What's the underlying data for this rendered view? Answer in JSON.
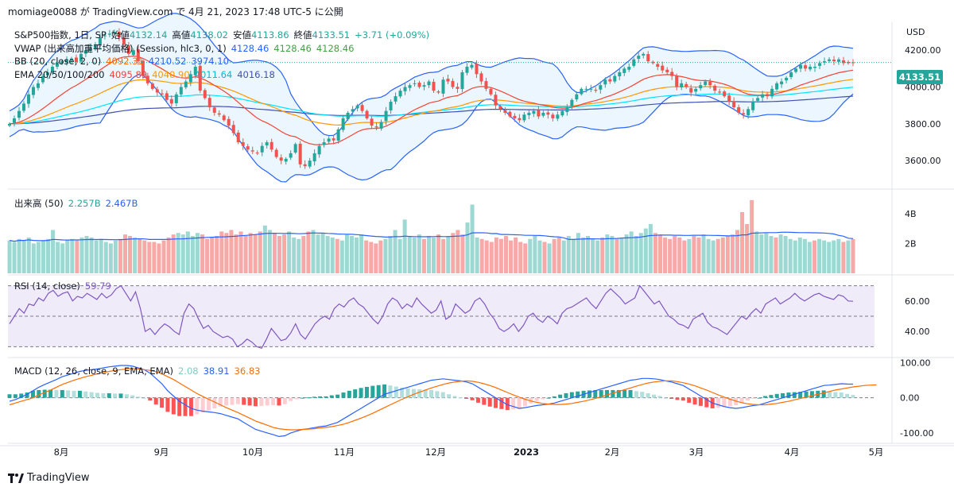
{
  "header": {
    "text": "momiage0088 が TradingView.com で 4月 21, 2023 17:48 UTC-5 に公開"
  },
  "legend": {
    "symbol": "S&P500指数, 1日, SP",
    "open_label": "始値",
    "open": "4132.14",
    "high_label": "高値",
    "high": "4138.02",
    "low_label": "安値",
    "low": "4113.86",
    "close_label": "終値",
    "close": "4133.51",
    "change": "+3.71 (+0.09%)",
    "vwap_label": "VWAP (出来高加重平均価格) (Session, hlc3, 0, 1)",
    "vwap_values": [
      "4128.46",
      "4128.46",
      "4128.46"
    ],
    "bb_label": "BB (20, close, 2, 0)",
    "bb_values": [
      "4092.31",
      "4210.52",
      "3974.10"
    ],
    "ema_label": "EMA 20/50/100/200",
    "ema_values": [
      "4095.89",
      "4040.90",
      "4011.64",
      "4016.18"
    ],
    "volume_label": "出来高 (50)",
    "volume_values": [
      "2.257B",
      "2.467B"
    ],
    "rsi_label": "RSI (14, close)",
    "rsi_value": "59.79",
    "macd_label": "MACD (12, 26, close, 9, EMA, EMA)",
    "macd_values": [
      "2.08",
      "38.91",
      "36.83"
    ]
  },
  "price_tag": "4133.51",
  "currency": "USD",
  "footer": {
    "brand": "TradingView"
  },
  "colors": {
    "up": "#26a69a",
    "down": "#ef5350",
    "bb": "#2962ff",
    "bb_fill": "#e3f2fd",
    "ema20": "#f44336",
    "ema50": "#ff9800",
    "ema100": "#00e5ff",
    "ema200": "#3f51b5",
    "vol_up": "#9ed8d2",
    "vol_down": "#f7a9a7",
    "rsi": "#7e57c2",
    "macd": "#2962ff",
    "signal": "#ff6d00"
  },
  "chart_data": [
    {
      "type": "candlestick",
      "title": "S&P500指数, 1日, SP",
      "x_ticks": [
        "8月",
        "9月",
        "10月",
        "11月",
        "12月",
        "2023",
        "2月",
        "3月",
        "4月",
        "5月"
      ],
      "y_ticks": [
        "4200.00",
        "4000.00",
        "3800.00",
        "3600.00"
      ],
      "ylim": [
        3480,
        4300
      ],
      "close_series": [
        3800,
        3830,
        3870,
        3910,
        3960,
        4000,
        4020,
        4060,
        4080,
        4110,
        4130,
        4140,
        4150,
        4155,
        4135,
        4180,
        4200,
        4210,
        4230,
        4270,
        4280,
        4290,
        4300,
        4270,
        4230,
        4180,
        4200,
        4140,
        4060,
        4020,
        3990,
        3970,
        3960,
        3930,
        3910,
        3960,
        4000,
        4030,
        4070,
        4110,
        3980,
        3940,
        3890,
        3860,
        3850,
        3820,
        3790,
        3750,
        3700,
        3680,
        3660,
        3650,
        3640,
        3680,
        3700,
        3660,
        3620,
        3600,
        3610,
        3640,
        3690,
        3580,
        3570,
        3600,
        3640,
        3680,
        3700,
        3720,
        3710,
        3770,
        3830,
        3860,
        3880,
        3900,
        3870,
        3830,
        3790,
        3780,
        3810,
        3870,
        3920,
        3950,
        3980,
        4000,
        4010,
        4020,
        4000,
        4010,
        4030,
        3980,
        3970,
        4040,
        4030,
        4000,
        3990,
        4080,
        4110,
        4120,
        4070,
        4030,
        3990,
        3960,
        3900,
        3880,
        3860,
        3840,
        3830,
        3820,
        3850,
        3860,
        3870,
        3840,
        3860,
        3850,
        3830,
        3850,
        3870,
        3890,
        3930,
        3960,
        3990,
        3990,
        3990,
        3980,
        4010,
        4040,
        4030,
        4060,
        4080,
        4100,
        4110,
        4150,
        4170,
        4180,
        4140,
        4130,
        4110,
        4090,
        4080,
        4060,
        4000,
        4020,
        4000,
        3970,
        3990,
        4010,
        4030,
        4010,
        3980,
        3970,
        3950,
        3920,
        3890,
        3860,
        3850,
        3880,
        3920,
        3940,
        3960,
        3950,
        3990,
        4020,
        4030,
        4050,
        4080,
        4100,
        4120,
        4100,
        4110,
        4110,
        4130,
        4140,
        4150,
        4140,
        4150,
        4130,
        4130,
        4133.51
      ],
      "annotation_last_price": "4133.51"
    },
    {
      "type": "bar",
      "title": "出来高 (50)",
      "y_ticks": [
        "4B",
        "2B"
      ],
      "ylim": [
        0,
        5
      ],
      "values_b": [
        2.2,
        2.1,
        2.3,
        2.2,
        2.4,
        2.0,
        2.1,
        2.2,
        2.3,
        2.9,
        2.1,
        2.0,
        2.2,
        2.3,
        2.2,
        2.4,
        2.5,
        2.4,
        2.2,
        2.3,
        2.1,
        2.0,
        2.2,
        2.3,
        2.6,
        2.5,
        2.4,
        2.3,
        2.2,
        2.1,
        2.1,
        2.0,
        2.2,
        2.4,
        2.6,
        2.7,
        2.6,
        2.8,
        2.5,
        2.7,
        2.6,
        2.3,
        2.4,
        2.5,
        2.8,
        2.7,
        2.9,
        2.6,
        2.8,
        2.5,
        2.7,
        2.6,
        2.8,
        3.2,
        2.9,
        2.7,
        2.5,
        2.6,
        2.8,
        2.4,
        2.3,
        2.5,
        2.8,
        2.9,
        2.6,
        2.7,
        2.5,
        2.4,
        2.3,
        2.2,
        2.6,
        2.5,
        2.4,
        2.6,
        2.2,
        2.1,
        2.0,
        2.2,
        2.3,
        2.5,
        2.9,
        2.3,
        3.6,
        2.5,
        2.4,
        2.6,
        2.3,
        2.5,
        2.4,
        2.6,
        2.3,
        2.5,
        2.7,
        2.9,
        2.6,
        3.4,
        4.6,
        2.4,
        2.3,
        2.2,
        2.1,
        2.4,
        2.3,
        2.5,
        2.2,
        2.4,
        2.1,
        2.0,
        2.3,
        2.5,
        2.2,
        2.1,
        2.0,
        2.3,
        2.4,
        2.2,
        2.5,
        2.3,
        2.7,
        2.4,
        2.5,
        2.3,
        2.2,
        2.4,
        2.6,
        2.5,
        2.3,
        2.4,
        2.6,
        2.8,
        2.5,
        2.7,
        3.0,
        3.3,
        2.7,
        2.6,
        2.4,
        2.3,
        2.5,
        2.4,
        2.2,
        2.3,
        2.5,
        2.4,
        2.6,
        2.3,
        2.2,
        2.3,
        2.4,
        2.5,
        2.6,
        2.9,
        4.1,
        3.3,
        4.9,
        2.8,
        2.6,
        2.7,
        2.5,
        2.4,
        2.6,
        2.5,
        2.3,
        2.2,
        2.4,
        2.3,
        2.1,
        2.2,
        2.3,
        2.2,
        2.1,
        2.2,
        2.3,
        2.1,
        2.2,
        2.3
      ]
    },
    {
      "type": "line",
      "title": "RSI (14, close)",
      "y_ticks": [
        "60.00",
        "40.00"
      ],
      "ylim": [
        25,
        75
      ],
      "values": [
        45,
        50,
        55,
        52,
        58,
        57,
        62,
        60,
        65,
        67,
        63,
        65,
        66,
        60,
        63,
        62,
        65,
        63,
        61,
        65,
        62,
        64,
        68,
        70,
        65,
        60,
        66,
        55,
        40,
        42,
        38,
        42,
        45,
        43,
        40,
        38,
        52,
        58,
        55,
        48,
        42,
        44,
        40,
        38,
        36,
        37,
        35,
        30,
        32,
        35,
        33,
        30,
        29,
        35,
        42,
        38,
        34,
        35,
        39,
        45,
        38,
        35,
        40,
        45,
        48,
        50,
        48,
        55,
        58,
        56,
        60,
        62,
        58,
        56,
        52,
        48,
        45,
        50,
        58,
        62,
        60,
        55,
        58,
        56,
        62,
        58,
        55,
        52,
        54,
        60,
        48,
        50,
        58,
        55,
        52,
        54,
        60,
        62,
        58,
        52,
        48,
        42,
        40,
        42,
        45,
        40,
        44,
        50,
        52,
        48,
        46,
        50,
        48,
        45,
        52,
        55,
        56,
        58,
        60,
        62,
        58,
        55,
        60,
        65,
        68,
        65,
        62,
        58,
        60,
        62,
        70,
        66,
        62,
        58,
        60,
        55,
        50,
        48,
        45,
        44,
        42,
        48,
        50,
        52,
        46,
        43,
        42,
        40,
        38,
        42,
        46,
        50,
        48,
        52,
        55,
        52,
        58,
        60,
        62,
        58,
        60,
        62,
        65,
        62,
        60,
        62,
        64,
        65,
        63,
        62,
        61,
        64,
        63,
        60,
        59.79
      ]
    },
    {
      "type": "line",
      "title": "MACD (12, 26, close, 9, EMA, EMA)",
      "y_ticks": [
        "100.00",
        "0.00",
        "-100.00"
      ],
      "ylim": [
        -125,
        110
      ],
      "series": [
        {
          "name": "MACD",
          "values": [
            -10,
            -5,
            2,
            10,
            20,
            30,
            38,
            45,
            52,
            60,
            65,
            70,
            75,
            78,
            80,
            82,
            85,
            88,
            90,
            92,
            92,
            90,
            85,
            80,
            70,
            55,
            40,
            20,
            5,
            -10,
            -20,
            -30,
            -35,
            -38,
            -40,
            -42,
            -45,
            -50,
            -55,
            -60,
            -70,
            -80,
            -90,
            -95,
            -100,
            -105,
            -110,
            -108,
            -100,
            -95,
            -90,
            -88,
            -85,
            -82,
            -80,
            -75,
            -70,
            -60,
            -50,
            -40,
            -30,
            -20,
            -10,
            0,
            10,
            15,
            20,
            25,
            30,
            35,
            40,
            45,
            50,
            52,
            54,
            52,
            50,
            48,
            45,
            40,
            30,
            20,
            10,
            0,
            -10,
            -20,
            -25,
            -30,
            -28,
            -25,
            -22,
            -20,
            -18,
            -15,
            -10,
            -5,
            0,
            5,
            10,
            15,
            20,
            25,
            30,
            35,
            40,
            45,
            50,
            52,
            55,
            55,
            54,
            52,
            48,
            45,
            40,
            35,
            25,
            15,
            5,
            -5,
            -15,
            -20,
            -25,
            -28,
            -30,
            -28,
            -25,
            -22,
            -20,
            -15,
            -10,
            -5,
            0,
            5,
            10,
            15,
            20,
            25,
            30,
            35,
            36,
            38,
            40,
            39,
            38.91
          ]
        },
        {
          "name": "Signal",
          "values": [
            -20,
            -15,
            -10,
            -5,
            0,
            8,
            15,
            22,
            30,
            38,
            44,
            50,
            55,
            60,
            64,
            68,
            72,
            75,
            78,
            80,
            82,
            83,
            82,
            80,
            78,
            74,
            68,
            60,
            52,
            42,
            32,
            22,
            12,
            4,
            -4,
            -12,
            -20,
            -28,
            -35,
            -42,
            -50,
            -58,
            -66,
            -72,
            -78,
            -84,
            -88,
            -90,
            -91,
            -91,
            -90,
            -89,
            -88,
            -86,
            -84,
            -82,
            -79,
            -75,
            -70,
            -64,
            -58,
            -51,
            -44,
            -36,
            -28,
            -20,
            -12,
            -4,
            3,
            10,
            16,
            22,
            28,
            33,
            38,
            42,
            45,
            47,
            48,
            47,
            44,
            40,
            35,
            29,
            22,
            15,
            8,
            2,
            -4,
            -9,
            -13,
            -16,
            -18,
            -19,
            -19,
            -18,
            -16,
            -13,
            -10,
            -6,
            -2,
            3,
            8,
            13,
            18,
            23,
            28,
            33,
            38,
            42,
            45,
            47,
            48,
            48,
            46,
            43,
            39,
            34,
            28,
            22,
            15,
            8,
            2,
            -4,
            -9,
            -14,
            -17,
            -19,
            -20,
            -20,
            -18,
            -16,
            -13,
            -10,
            -6,
            -2,
            2,
            6,
            10,
            14,
            18,
            22,
            25,
            28,
            31,
            33,
            35,
            36,
            36.83
          ]
        }
      ]
    }
  ]
}
